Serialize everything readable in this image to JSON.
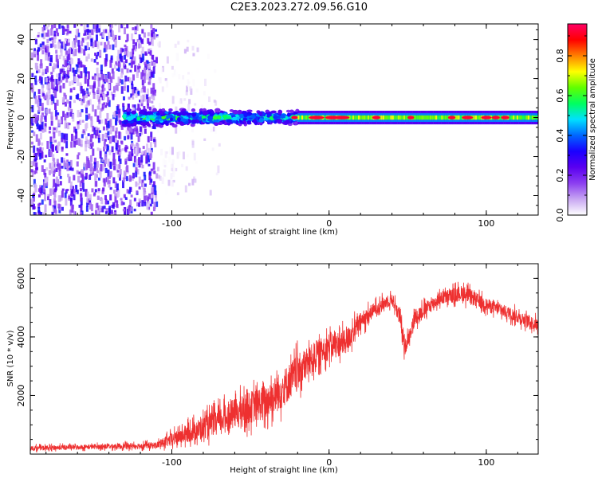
{
  "title": "C2E3.2023.272.09.56.G10",
  "chart_data": [
    {
      "type": "heatmap",
      "xlabel": "Height of straight line (km)",
      "ylabel": "Frequency (Hz)",
      "xlim": [
        -190,
        133
      ],
      "ylim": [
        -50,
        48
      ],
      "xticks": [
        -100,
        0,
        100
      ],
      "yticks": [
        -40,
        -20,
        0,
        20,
        40
      ],
      "colorbar": {
        "label": "Normalized spectral amplitude",
        "range": [
          0,
          0.96
        ],
        "ticks": [
          0.0,
          0.2,
          0.4,
          0.6,
          0.8
        ],
        "colormap": [
          "#ffffff",
          "#c8a6f2",
          "#8c3ff0",
          "#5a00f0",
          "#1a00ff",
          "#0066ff",
          "#00e0ff",
          "#00ff60",
          "#60ff00",
          "#ffff00",
          "#ff8000",
          "#ff0000",
          "#ff0066"
        ]
      },
      "regions": [
        {
          "name": "scattered-noise",
          "x_range": [
            -190,
            -110
          ],
          "y_range": [
            -50,
            48
          ],
          "amplitude": [
            0.05,
            0.35
          ]
        },
        {
          "name": "sparse-noise",
          "x_range": [
            -110,
            -70
          ],
          "y_range": [
            -50,
            48
          ],
          "amplitude": [
            0.0,
            0.1
          ]
        },
        {
          "name": "broad-signal",
          "x_range": [
            -130,
            -20
          ],
          "y_range": [
            -5,
            5
          ],
          "amplitude": [
            0.15,
            0.65
          ]
        },
        {
          "name": "narrow-signal",
          "x_range": [
            -20,
            133
          ],
          "y_range": [
            -2,
            2
          ],
          "amplitude": [
            0.5,
            0.95
          ]
        }
      ]
    },
    {
      "type": "line",
      "xlabel": "Height of straight line (km)",
      "ylabel": "SNR (10 * v/v)",
      "xlim": [
        -190,
        133
      ],
      "ylim": [
        0,
        6500
      ],
      "xticks": [
        -100,
        0,
        100
      ],
      "yticks": [
        2000,
        4000,
        6000
      ],
      "color": "#ee3030",
      "envelope": {
        "x": [
          -190,
          -150,
          -110,
          -100,
          -80,
          -60,
          -40,
          -30,
          -20,
          -10,
          0,
          10,
          20,
          30,
          40,
          45,
          48,
          55,
          70,
          85,
          100,
          115,
          133
        ],
        "y_mid": [
          200,
          250,
          300,
          500,
          900,
          1400,
          1800,
          2200,
          2800,
          3300,
          3700,
          3800,
          4500,
          5000,
          5300,
          4700,
          3600,
          4700,
          5300,
          5500,
          5100,
          4800,
          4400
        ],
        "y_spread": [
          150,
          150,
          200,
          400,
          700,
          900,
          1100,
          1200,
          1100,
          900,
          800,
          800,
          600,
          400,
          400,
          500,
          500,
          500,
          400,
          500,
          400,
          400,
          400
        ]
      }
    }
  ]
}
